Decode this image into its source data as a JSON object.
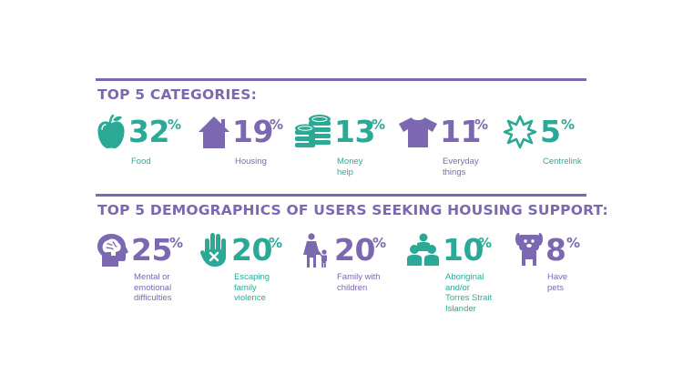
{
  "colors": {
    "purple": "#7b68b0",
    "green": "#2aaa96"
  },
  "categories": {
    "title": "TOP 5 CATEGORIES:",
    "items": [
      {
        "icon": "apple-icon",
        "value": "32",
        "unit": "%",
        "label": "Food"
      },
      {
        "icon": "house-icon",
        "value": "19",
        "unit": "%",
        "label": "Housing"
      },
      {
        "icon": "coins-icon",
        "value": "13",
        "unit": "%",
        "label_line1": "Money",
        "label_line2": "help"
      },
      {
        "icon": "tshirt-icon",
        "value": "11",
        "unit": "%",
        "label_line1": "Everyday",
        "label_line2": "things"
      },
      {
        "icon": "centrelink-star-icon",
        "value": "5",
        "unit": "%",
        "label": "Centrelink"
      }
    ]
  },
  "demographics": {
    "title": "TOP 5 DEMOGRAPHICS OF USERS SEEKING HOUSING SUPPORT:",
    "items": [
      {
        "icon": "head-brain-icon",
        "value": "25",
        "unit": "%",
        "label_line1": "Mental or",
        "label_line2": "emotional",
        "label_line3": "difficulties"
      },
      {
        "icon": "stop-hand-icon",
        "value": "20",
        "unit": "%",
        "label_line1": "Escaping",
        "label_line2": "family",
        "label_line3": "violence"
      },
      {
        "icon": "parent-child-icon",
        "value": "20",
        "unit": "%",
        "label_line1": "Family with",
        "label_line2": "children"
      },
      {
        "icon": "people-group-icon",
        "value": "10",
        "unit": "%",
        "label_line1": "Aboriginal",
        "label_line2": "and/or",
        "label_line3": "Torres Strait",
        "label_line4": "Islander"
      },
      {
        "icon": "dog-icon",
        "value": "8",
        "unit": "%",
        "label_line1": "Have",
        "label_line2": "pets"
      }
    ]
  }
}
